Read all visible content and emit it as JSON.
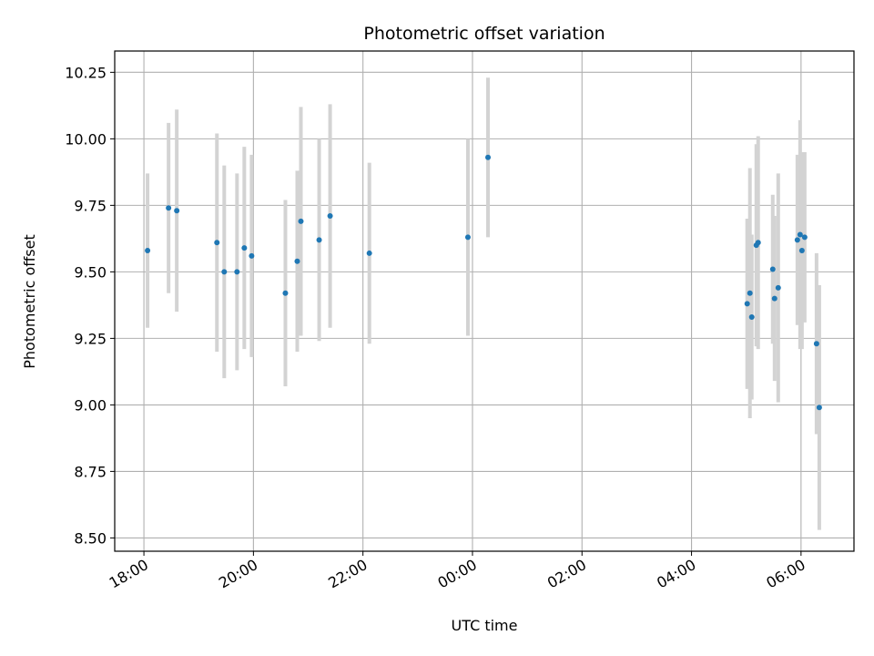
{
  "chart_data": {
    "type": "scatter",
    "title": "Photometric offset variation",
    "xlabel": "UTC time",
    "ylabel": "Photometric offset",
    "grid": true,
    "x_unit": "UTC time",
    "xlim": [
      "17:28",
      "06:58 (+1 day)"
    ],
    "ylim": [
      8.45,
      10.33
    ],
    "x_ticks": [
      "18:00",
      "20:00",
      "22:00",
      "00:00",
      "02:00",
      "04:00",
      "06:00"
    ],
    "y_ticks": [
      "8.50",
      "8.75",
      "9.00",
      "9.25",
      "9.50",
      "9.75",
      "10.00",
      "10.25"
    ],
    "point_color": "#1f77b4",
    "errorbar_color": "#d3d3d3",
    "points": [
      {
        "time": "18:04",
        "y": 9.58,
        "err": 0.29
      },
      {
        "time": "18:27",
        "y": 9.74,
        "err": 0.32
      },
      {
        "time": "18:36",
        "y": 9.73,
        "err": 0.38
      },
      {
        "time": "19:20",
        "y": 9.61,
        "err": 0.41
      },
      {
        "time": "19:28",
        "y": 9.5,
        "err": 0.4
      },
      {
        "time": "19:42",
        "y": 9.5,
        "err": 0.37
      },
      {
        "time": "19:50",
        "y": 9.59,
        "err": 0.38
      },
      {
        "time": "19:58",
        "y": 9.56,
        "err": 0.38
      },
      {
        "time": "20:35",
        "y": 9.42,
        "err": 0.35
      },
      {
        "time": "20:48",
        "y": 9.54,
        "err": 0.34
      },
      {
        "time": "20:52",
        "y": 9.69,
        "err": 0.43
      },
      {
        "time": "21:12",
        "y": 9.62,
        "err": 0.38
      },
      {
        "time": "21:24",
        "y": 9.71,
        "err": 0.42
      },
      {
        "time": "22:07",
        "y": 9.57,
        "err": 0.34
      },
      {
        "time": "23:55",
        "y": 9.63,
        "err": 0.37
      },
      {
        "time": "00:17",
        "y": 9.93,
        "err": 0.3
      },
      {
        "time": "05:01",
        "y": 9.38,
        "err": 0.32
      },
      {
        "time": "05:04",
        "y": 9.42,
        "err": 0.47
      },
      {
        "time": "05:06",
        "y": 9.33,
        "err": 0.31
      },
      {
        "time": "05:11",
        "y": 9.6,
        "err": 0.38
      },
      {
        "time": "05:13",
        "y": 9.61,
        "err": 0.4
      },
      {
        "time": "05:29",
        "y": 9.51,
        "err": 0.28
      },
      {
        "time": "05:31",
        "y": 9.4,
        "err": 0.31
      },
      {
        "time": "05:35",
        "y": 9.44,
        "err": 0.43
      },
      {
        "time": "05:56",
        "y": 9.62,
        "err": 0.32
      },
      {
        "time": "05:59",
        "y": 9.64,
        "err": 0.43
      },
      {
        "time": "06:01",
        "y": 9.58,
        "err": 0.37
      },
      {
        "time": "06:04",
        "y": 9.63,
        "err": 0.32
      },
      {
        "time": "06:17",
        "y": 9.23,
        "err": 0.34
      },
      {
        "time": "06:20",
        "y": 8.99,
        "err": 0.46
      }
    ]
  }
}
